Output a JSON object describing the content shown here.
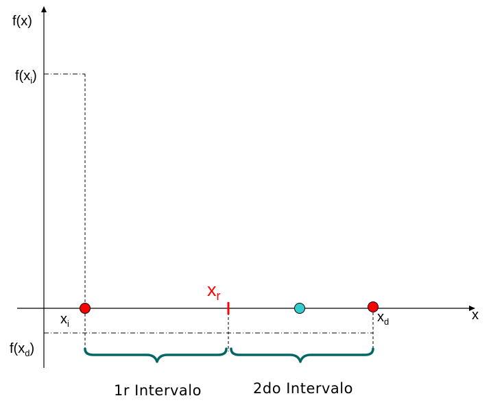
{
  "axes": {
    "y_label": "f(x)",
    "x_label": "x"
  },
  "labels": {
    "fxi_main": "f(x",
    "fxi_sub": "i",
    "fxi_close": ")",
    "fxd_main": "f(x",
    "fxd_sub": "d",
    "fxd_close": ")",
    "xi_main": "x",
    "xi_sub": "i",
    "xd_main": "x",
    "xd_sub": "d",
    "xr_main": "x",
    "xr_sub": "r"
  },
  "intervals": {
    "first": "1r Intervalo",
    "second": "2do Intervalo"
  },
  "colors": {
    "axis": "#000000",
    "endpoint": "#ff0000",
    "midpoint": "#33cccc",
    "brace": "#006666",
    "root_marker": "#ff0000"
  }
}
